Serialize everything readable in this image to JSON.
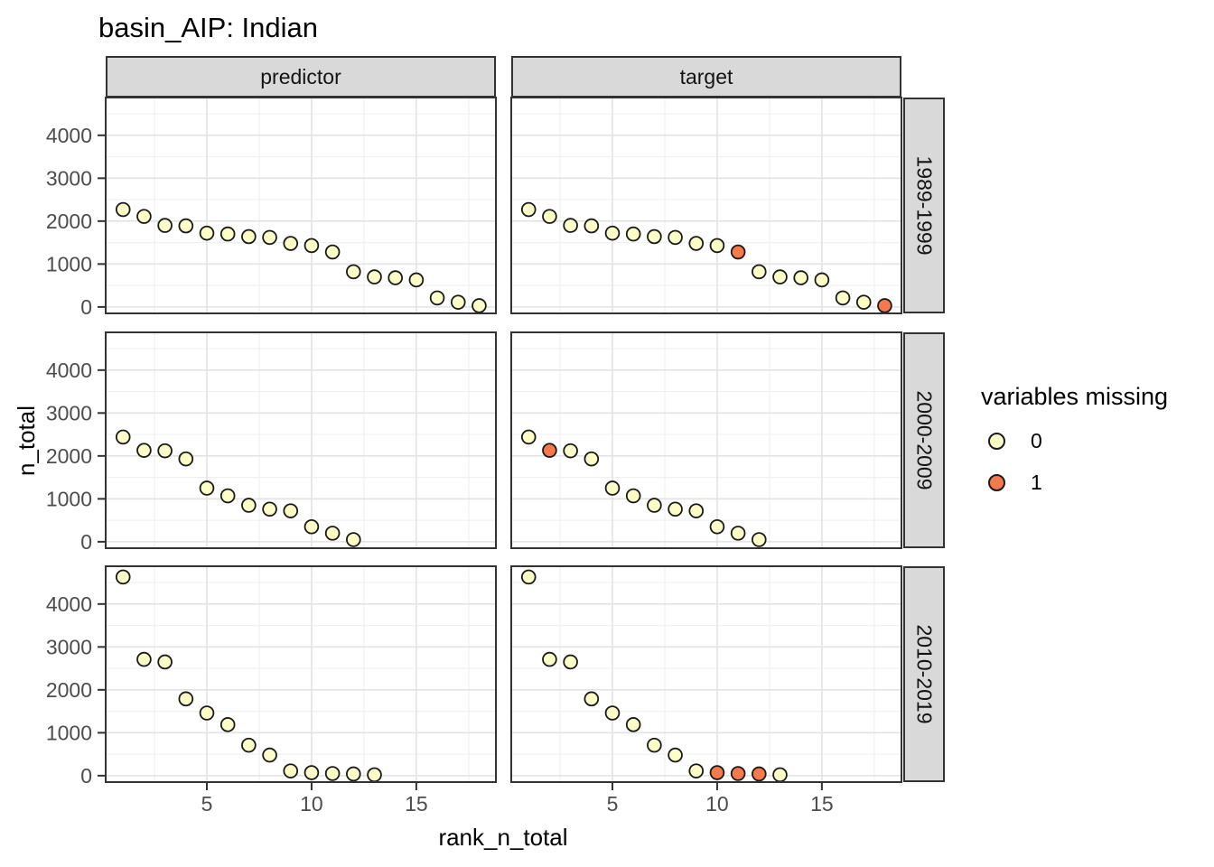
{
  "title": "basin_AIP: Indian",
  "axes": {
    "x_label": "rank_n_total",
    "y_label": "n_total"
  },
  "facets": {
    "columns": [
      "predictor",
      "target"
    ],
    "rows": [
      "1989-1999",
      "2000-2009",
      "2010-2019"
    ]
  },
  "legend": {
    "title": "variables missing",
    "items": [
      {
        "label": "0",
        "value": 0,
        "color": "#FDFDC8"
      },
      {
        "label": "1",
        "value": 1,
        "color": "#F4794C"
      }
    ]
  },
  "chart_data": {
    "type": "scatter",
    "title": "basin_AIP: Indian",
    "xlabel": "rank_n_total",
    "ylabel": "n_total",
    "facet_columns": [
      "predictor",
      "target"
    ],
    "facet_rows": [
      "1989-1999",
      "2000-2009",
      "2010-2019"
    ],
    "x_ticks": [
      5,
      10,
      15
    ],
    "y_ticks": [
      0,
      1000,
      2000,
      3000,
      4000
    ],
    "x_minor": [
      2.5,
      7.5,
      12.5,
      17.5
    ],
    "y_minor": [
      500,
      1500,
      2500,
      3500,
      4500
    ],
    "x_domain": [
      0.17,
      18.8
    ],
    "y_domain": [
      -150,
      4880
    ],
    "grid": true,
    "legend_position": "right",
    "note": "predictor and target panels in each row show identical n_total values at ranks 1..N; target_missing_ranks lists the ranks drawn with the 'variables missing = 1' color in the target panel only",
    "rows": [
      {
        "row_label": "1989-1999",
        "ranks_start": 1,
        "values": [
          2270,
          2110,
          1900,
          1890,
          1720,
          1700,
          1640,
          1620,
          1480,
          1430,
          1280,
          820,
          700,
          680,
          630,
          210,
          110,
          30
        ],
        "target_missing_ranks": [
          11,
          18
        ]
      },
      {
        "row_label": "2000-2009",
        "ranks_start": 1,
        "values": [
          2440,
          2130,
          2120,
          1930,
          1250,
          1070,
          850,
          760,
          720,
          350,
          200,
          50
        ],
        "target_missing_ranks": [
          2
        ]
      },
      {
        "row_label": "2010-2019",
        "ranks_start": 1,
        "values": [
          4630,
          2710,
          2650,
          1790,
          1460,
          1190,
          710,
          480,
          110,
          70,
          50,
          40,
          20
        ],
        "target_missing_ranks": [
          10,
          11,
          12
        ]
      }
    ],
    "point_colors": {
      "missing_0": "#FDFDC8",
      "missing_1": "#F4794C",
      "stroke": "#1A1A1A"
    }
  }
}
